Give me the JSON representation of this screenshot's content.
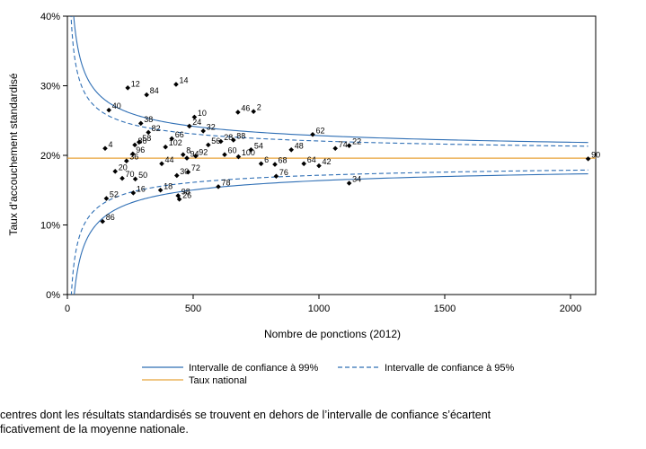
{
  "chart_data": {
    "type": "scatter",
    "xlabel": "Nombre de ponctions (2012)",
    "ylabel": "Taux d'accouchement standardisé",
    "xlim": [
      0,
      2100
    ],
    "ylim": [
      0,
      40
    ],
    "xticks": [
      "0",
      "500",
      "1000",
      "1500",
      "2000"
    ],
    "yticks": [
      "0%",
      "10%",
      "20%",
      "30%",
      "40%"
    ],
    "national_rate": 19.6,
    "points": [
      {
        "label": "12",
        "x": 240,
        "y": 29.7
      },
      {
        "label": "84",
        "x": 315,
        "y": 28.7
      },
      {
        "label": "14",
        "x": 432,
        "y": 30.2
      },
      {
        "label": "40",
        "x": 165,
        "y": 26.5
      },
      {
        "label": "46",
        "x": 678,
        "y": 26.2
      },
      {
        "label": "2",
        "x": 740,
        "y": 26.3
      },
      {
        "label": "10",
        "x": 505,
        "y": 25.5
      },
      {
        "label": "38",
        "x": 292,
        "y": 24.6
      },
      {
        "label": "24",
        "x": 485,
        "y": 24.2
      },
      {
        "label": "62",
        "x": 975,
        "y": 23.0
      },
      {
        "label": "82",
        "x": 322,
        "y": 23.3
      },
      {
        "label": "32",
        "x": 540,
        "y": 23.5
      },
      {
        "label": "66",
        "x": 415,
        "y": 22.4
      },
      {
        "label": "28",
        "x": 610,
        "y": 22.0
      },
      {
        "label": "88",
        "x": 660,
        "y": 22.2
      },
      {
        "label": "80",
        "x": 268,
        "y": 21.5
      },
      {
        "label": "58",
        "x": 285,
        "y": 21.9
      },
      {
        "label": "4",
        "x": 150,
        "y": 21.0
      },
      {
        "label": "102",
        "x": 390,
        "y": 21.2
      },
      {
        "label": "56",
        "x": 560,
        "y": 21.5
      },
      {
        "label": "54",
        "x": 730,
        "y": 20.8
      },
      {
        "label": "48",
        "x": 890,
        "y": 20.8
      },
      {
        "label": "74",
        "x": 1065,
        "y": 21.0
      },
      {
        "label": "22",
        "x": 1120,
        "y": 21.4
      },
      {
        "label": "96",
        "x": 260,
        "y": 20.2
      },
      {
        "label": "8",
        "x": 460,
        "y": 20.1
      },
      {
        "label": "60",
        "x": 625,
        "y": 20.1
      },
      {
        "label": "94",
        "x": 475,
        "y": 19.6
      },
      {
        "label": "92",
        "x": 510,
        "y": 19.9
      },
      {
        "label": "100",
        "x": 680,
        "y": 19.8
      },
      {
        "label": "90",
        "x": 2070,
        "y": 19.5
      },
      {
        "label": "36",
        "x": 235,
        "y": 19.2
      },
      {
        "label": "44",
        "x": 375,
        "y": 18.8
      },
      {
        "label": "6",
        "x": 770,
        "y": 18.8
      },
      {
        "label": "68",
        "x": 825,
        "y": 18.7
      },
      {
        "label": "64",
        "x": 940,
        "y": 18.8
      },
      {
        "label": "42",
        "x": 1000,
        "y": 18.5
      },
      {
        "label": "20",
        "x": 190,
        "y": 17.7
      },
      {
        "label": "30",
        "x": 435,
        "y": 17.1
      },
      {
        "label": "72",
        "x": 480,
        "y": 17.6
      },
      {
        "label": "70",
        "x": 218,
        "y": 16.7
      },
      {
        "label": "50",
        "x": 270,
        "y": 16.6
      },
      {
        "label": "76",
        "x": 830,
        "y": 17.0
      },
      {
        "label": "34",
        "x": 1120,
        "y": 16.0
      },
      {
        "label": "18",
        "x": 370,
        "y": 15.0
      },
      {
        "label": "78",
        "x": 600,
        "y": 15.5
      },
      {
        "label": "52",
        "x": 155,
        "y": 13.8
      },
      {
        "label": "16",
        "x": 262,
        "y": 14.6
      },
      {
        "label": "98",
        "x": 440,
        "y": 14.2
      },
      {
        "label": "26",
        "x": 445,
        "y": 13.7
      },
      {
        "label": "86",
        "x": 140,
        "y": 10.5
      }
    ],
    "legend": [
      {
        "label": "Intervalle de confiance à 99%",
        "style": "solid"
      },
      {
        "label": "Intervalle de confiance à 95%",
        "style": "dashed"
      },
      {
        "label": "Taux national",
        "style": "national"
      }
    ],
    "colors": {
      "ci": "#2f6fb5",
      "national": "#e8a33a",
      "points": "#000000"
    }
  },
  "caption": {
    "line1": "centres dont les résultats standardisés se trouvent en dehors de l’intervalle de confiance s’écartent",
    "line2": "ficativement de la moyenne nationale."
  }
}
